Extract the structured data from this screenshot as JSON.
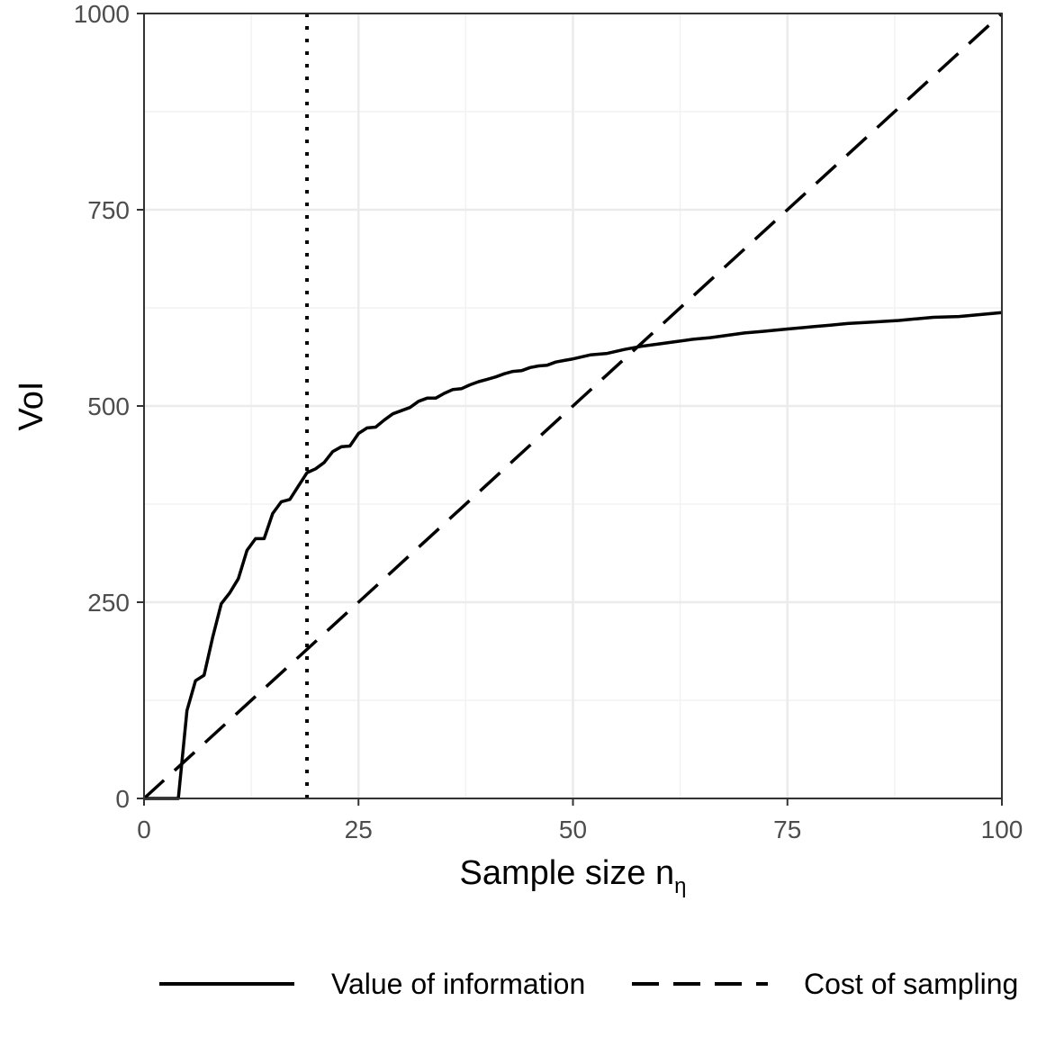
{
  "chart_data": {
    "type": "line",
    "title": "",
    "xlabel": "Sample size n",
    "xlabel_subscript": "η",
    "ylabel": "VoI",
    "xlim": [
      0,
      100
    ],
    "ylim": [
      0,
      1000
    ],
    "x_ticks": [
      0,
      25,
      50,
      75,
      100
    ],
    "x_tick_labels": [
      "0",
      "25",
      "50",
      "75",
      "100"
    ],
    "y_ticks": [
      0,
      250,
      500,
      750,
      1000
    ],
    "y_tick_labels": [
      "0",
      "250",
      "500",
      "750",
      "1000"
    ],
    "grid": true,
    "legend_position": "bottom",
    "reference_line": {
      "orientation": "vertical",
      "x": 19,
      "style": "dotted"
    },
    "series": [
      {
        "name": "Value of information",
        "style": "solid",
        "color": "#000000",
        "x": [
          0,
          4,
          5,
          6,
          7,
          8,
          9,
          10,
          11,
          12,
          13,
          14,
          15,
          16,
          17,
          18,
          19,
          20,
          21,
          22,
          23,
          24,
          25,
          26,
          27,
          28,
          29,
          30,
          31,
          32,
          33,
          34,
          35,
          36,
          37,
          38,
          39,
          40,
          41,
          42,
          43,
          44,
          45,
          46,
          47,
          48,
          49,
          50,
          52,
          54,
          56,
          58,
          60,
          62,
          64,
          66,
          68,
          70,
          72,
          75,
          78,
          80,
          82,
          85,
          88,
          90,
          92,
          95,
          98,
          100
        ],
        "y": [
          0,
          0,
          112,
          150,
          157,
          205,
          248,
          262,
          280,
          316,
          331,
          331,
          363,
          378,
          381,
          398,
          415,
          420,
          428,
          442,
          448,
          449,
          465,
          472,
          473,
          482,
          490,
          494,
          498,
          506,
          510,
          510,
          516,
          521,
          522,
          527,
          531,
          534,
          537,
          541,
          544,
          545,
          549,
          551,
          552,
          556,
          558,
          560,
          565,
          567,
          572,
          576,
          579,
          582,
          585,
          587,
          590,
          593,
          595,
          598,
          601,
          603,
          605,
          607,
          609,
          611,
          613,
          614,
          617,
          619
        ]
      },
      {
        "name": "Cost of sampling",
        "style": "dashed",
        "color": "#000000",
        "x": [
          0,
          100
        ],
        "y": [
          0,
          1000
        ]
      }
    ]
  }
}
